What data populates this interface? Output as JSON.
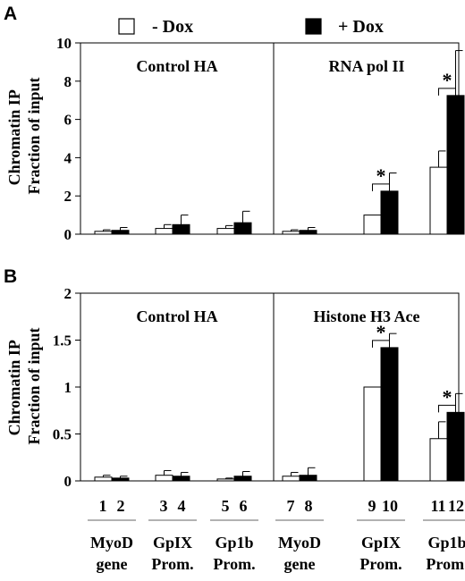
{
  "legend": {
    "minus_label": "- Dox",
    "plus_label": "+ Dox",
    "minus_color": "#ffffff",
    "plus_color": "#000000"
  },
  "chart_data": [
    {
      "type": "bar",
      "panel_letter": "A",
      "ylabel_line1": "Chromatin IP",
      "ylabel_line2": "Fraction of input",
      "ylim": [
        0,
        10
      ],
      "yticks": [
        "0",
        "2",
        "4",
        "6",
        "8",
        "10"
      ],
      "sections": [
        "Control HA",
        "RNA pol II"
      ],
      "categories": [
        "1-2",
        "3-4",
        "5-6",
        "7-8",
        "9-10",
        "11-12"
      ],
      "series": [
        {
          "name": "- Dox",
          "values": [
            0.15,
            0.3,
            0.3,
            0.15,
            1.0,
            3.5
          ],
          "errors": [
            0.08,
            0.2,
            0.15,
            0.08,
            0.0,
            0.85
          ]
        },
        {
          "name": "+ Dox",
          "values": [
            0.2,
            0.5,
            0.6,
            0.2,
            2.25,
            7.25
          ],
          "errors": [
            0.15,
            0.5,
            0.6,
            0.15,
            0.95,
            2.35
          ]
        }
      ],
      "significance": [
        "",
        "",
        "",
        "",
        "*",
        "*"
      ]
    },
    {
      "type": "bar",
      "panel_letter": "B",
      "ylabel_line1": "Chromatin IP",
      "ylabel_line2": "Fraction of input",
      "ylim": [
        0,
        2
      ],
      "yticks": [
        "0",
        "0.5",
        "1",
        "1.5",
        "2"
      ],
      "sections": [
        "Control HA",
        "Histone H3 Ace"
      ],
      "categories": [
        "1-2",
        "3-4",
        "5-6",
        "7-8",
        "9-10",
        "11-12"
      ],
      "series": [
        {
          "name": "- Dox",
          "values": [
            0.04,
            0.06,
            0.02,
            0.05,
            1.0,
            0.45
          ],
          "errors": [
            0.02,
            0.05,
            0.01,
            0.04,
            0.0,
            0.18
          ]
        },
        {
          "name": "+ Dox",
          "values": [
            0.03,
            0.05,
            0.05,
            0.06,
            1.42,
            0.73
          ],
          "errors": [
            0.02,
            0.04,
            0.05,
            0.08,
            0.15,
            0.2
          ]
        }
      ],
      "significance": [
        "",
        "",
        "",
        "",
        "*",
        "*"
      ]
    }
  ],
  "lane_numbers": [
    "1",
    "2",
    "3",
    "4",
    "5",
    "6",
    "7",
    "8",
    "9",
    "10",
    "11",
    "12"
  ],
  "gene_labels": [
    {
      "line1": "MyoD",
      "line2": "gene"
    },
    {
      "line1": "GpIX",
      "line2": "Prom."
    },
    {
      "line1": "Gp1b",
      "line2": "Prom."
    },
    {
      "line1": "MyoD",
      "line2": "gene"
    },
    {
      "line1": "GpIX",
      "line2": "Prom."
    },
    {
      "line1": "Gp1b",
      "line2": "Prom."
    }
  ]
}
